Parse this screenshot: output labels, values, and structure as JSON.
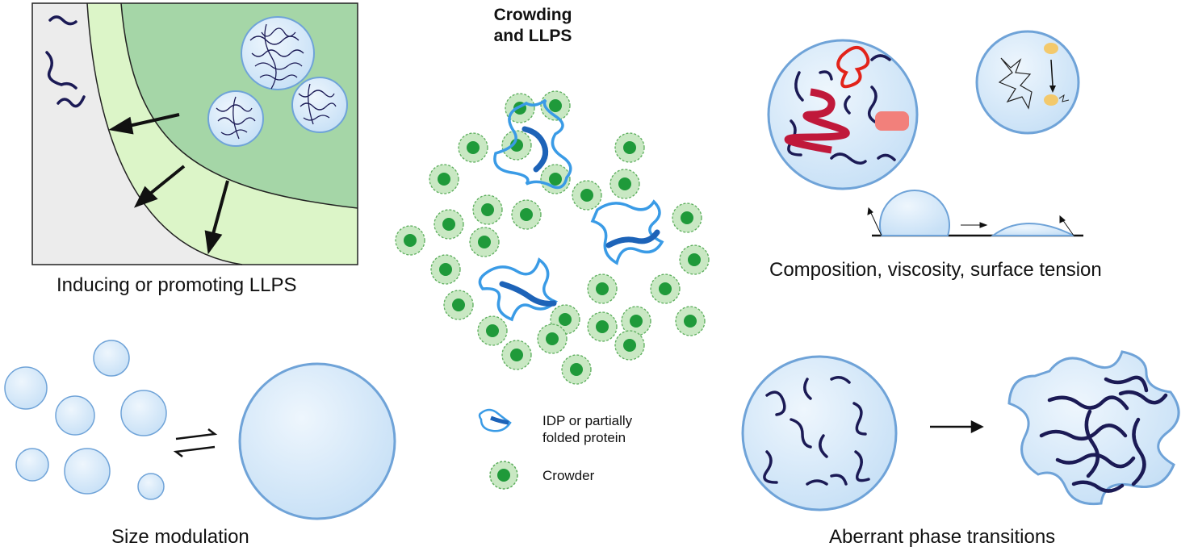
{
  "title": [
    "Crowding",
    "and LLPS"
  ],
  "panels": {
    "promoting": "Inducing or promoting LLPS",
    "properties": "Composition, viscosity, surface tension",
    "size": "Size modulation",
    "aberrant": "Aberrant phase transitions"
  },
  "legend": {
    "idp": [
      "IDP or partially",
      "folded protein"
    ],
    "crowder": "Crowder"
  },
  "colors": {
    "droplet_fill": "#d4e8f8",
    "droplet_stroke": "#6fa3d8",
    "crowder_core": "#1f9a3a",
    "crowder_halo": "#c9e8c3",
    "dense_phase": "#a5d6a7",
    "mixed_phase": "#dcf5c8",
    "dilute_phase": "#ececec",
    "chain": "#1b1a55",
    "protein": "#2f8fe0"
  }
}
